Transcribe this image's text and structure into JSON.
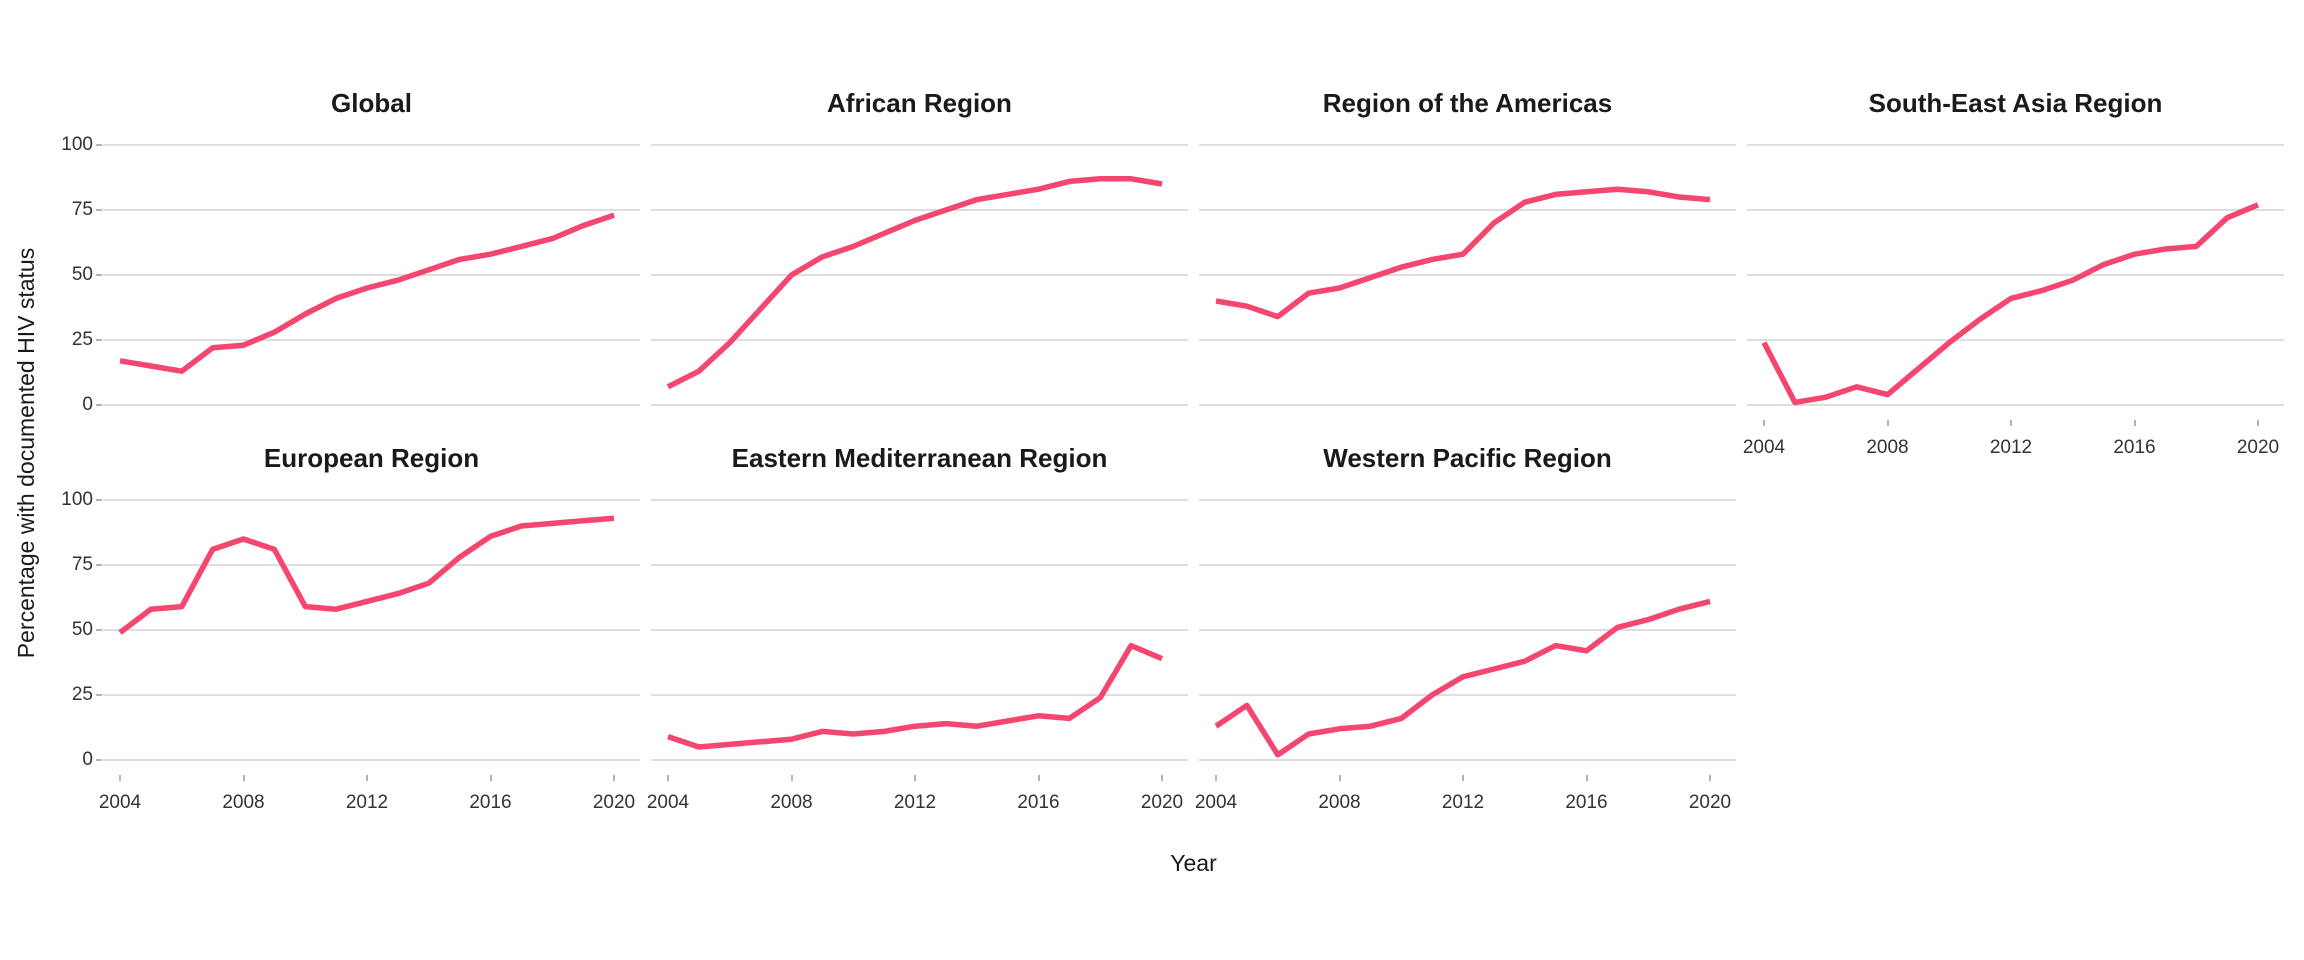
{
  "chart_data": {
    "type": "line",
    "x": [
      2004,
      2005,
      2006,
      2007,
      2008,
      2009,
      2010,
      2011,
      2012,
      2013,
      2014,
      2015,
      2016,
      2017,
      2018,
      2019,
      2020
    ],
    "xlabel": "Year",
    "ylabel": "Percentage with documented HIV status",
    "ylim": [
      0,
      100
    ],
    "y_tick_labels": [
      "100",
      "75",
      "50",
      "25",
      "0"
    ],
    "y_tick_values": [
      100,
      75,
      50,
      25,
      0
    ],
    "x_tick_values": [
      2004,
      2008,
      2012,
      2016,
      2020
    ],
    "x_tick_labels": [
      "2004",
      "2008",
      "2012",
      "2016",
      "2020"
    ],
    "grid": "horizontal-only",
    "legend": "none",
    "line_color": "#f4466e",
    "facets": [
      {
        "title": "Global",
        "values": [
          17,
          15,
          13,
          22,
          23,
          28,
          35,
          41,
          45,
          48,
          52,
          56,
          58,
          61,
          64,
          69,
          73
        ]
      },
      {
        "title": "African Region",
        "values": [
          7,
          13,
          24,
          37,
          50,
          57,
          61,
          66,
          71,
          75,
          79,
          81,
          83,
          86,
          87,
          87,
          85
        ]
      },
      {
        "title": "Region of the Americas",
        "values": [
          40,
          38,
          34,
          43,
          45,
          49,
          53,
          56,
          58,
          70,
          78,
          81,
          82,
          83,
          82,
          80,
          79
        ]
      },
      {
        "title": "South-East Asia Region",
        "values": [
          24,
          1,
          3,
          7,
          4,
          14,
          24,
          33,
          41,
          44,
          48,
          54,
          58,
          60,
          61,
          72,
          77
        ]
      },
      {
        "title": "European Region",
        "values": [
          49,
          58,
          59,
          81,
          85,
          81,
          59,
          58,
          61,
          64,
          68,
          78,
          86,
          90,
          91,
          92,
          93
        ]
      },
      {
        "title": "Eastern Mediterranean Region",
        "values": [
          9,
          5,
          6,
          7,
          8,
          11,
          10,
          11,
          13,
          14,
          13,
          15,
          17,
          16,
          24,
          44,
          39
        ]
      },
      {
        "title": "Western Pacific Region",
        "values": [
          13,
          21,
          2,
          10,
          12,
          13,
          16,
          25,
          32,
          35,
          38,
          44,
          42,
          51,
          54,
          58,
          61
        ]
      }
    ]
  },
  "colors": {
    "line": "#f4466e",
    "gridline": "#d9d9d9",
    "tick_mark": "#b3b3b3",
    "title_text": "#1a1a1a",
    "axis_text": "#333333",
    "background": "#ffffff"
  }
}
